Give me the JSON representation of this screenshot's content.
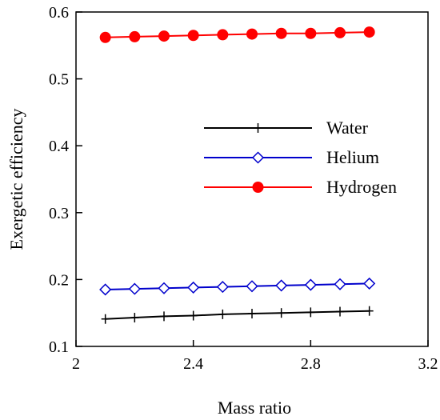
{
  "chart_data": {
    "type": "line",
    "xlabel": "Mass ratio",
    "ylabel": "Exergetic efficiency",
    "xlim": [
      2.0,
      3.2
    ],
    "ylim": [
      0.1,
      0.6
    ],
    "xticks": [
      2.0,
      2.4,
      2.8,
      3.2
    ],
    "xtick_labels": [
      "2",
      "2.4",
      "2.8",
      "3.2"
    ],
    "yticks": [
      0.1,
      0.2,
      0.3,
      0.4,
      0.5,
      0.6
    ],
    "ytick_labels": [
      "0.1",
      "0.2",
      "0.3",
      "0.4",
      "0.5",
      "0.6"
    ],
    "grid": false,
    "legend": "center-right",
    "x": [
      2.1,
      2.2,
      2.3,
      2.4,
      2.5,
      2.6,
      2.7,
      2.8,
      2.9,
      3.0
    ],
    "series": [
      {
        "name": "Water",
        "color": "#000000",
        "marker": "plus",
        "values": [
          0.141,
          0.143,
          0.145,
          0.146,
          0.148,
          0.149,
          0.15,
          0.151,
          0.152,
          0.153
        ]
      },
      {
        "name": "Helium",
        "color": "#0000cc",
        "marker": "diamond-open",
        "values": [
          0.185,
          0.186,
          0.187,
          0.188,
          0.189,
          0.19,
          0.191,
          0.192,
          0.193,
          0.194
        ]
      },
      {
        "name": "Hydrogen",
        "color": "#ff0000",
        "marker": "circle-filled",
        "values": [
          0.562,
          0.563,
          0.564,
          0.565,
          0.566,
          0.567,
          0.568,
          0.568,
          0.569,
          0.57
        ]
      }
    ]
  }
}
